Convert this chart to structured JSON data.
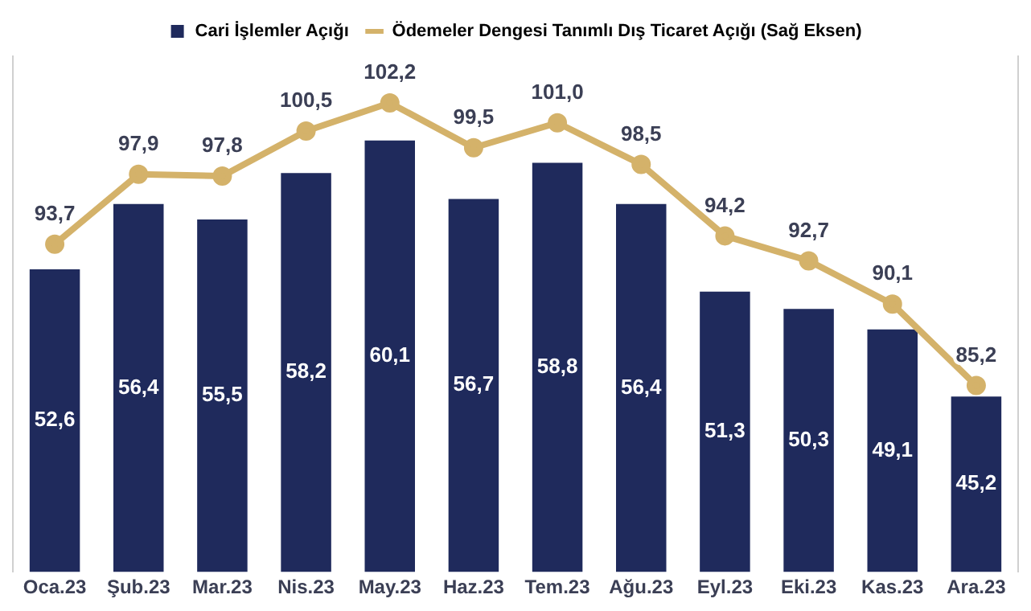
{
  "chart_data": {
    "type": "bar",
    "categories": [
      "Oca.23",
      "Şub.23",
      "Mar.23",
      "Nis.23",
      "May.23",
      "Haz.23",
      "Tem.23",
      "Ağu.23",
      "Eyl.23",
      "Eki.23",
      "Kas.23",
      "Ara.23"
    ],
    "series": [
      {
        "name": "Cari İşlemler Açığı",
        "color": "#1f2a5c",
        "values": [
          52.6,
          56.4,
          55.5,
          58.2,
          60.1,
          56.7,
          58.8,
          56.4,
          51.3,
          50.3,
          49.1,
          45.2
        ],
        "value_labels": [
          "52,6",
          "56,4",
          "55,5",
          "58,2",
          "60,1",
          "56,7",
          "58,8",
          "56,4",
          "51,3",
          "50,3",
          "49,1",
          "45,2"
        ]
      },
      {
        "name": "Ödemeler Dengesi Tanımlı Dış Ticaret Açığı (Sağ Eksen)",
        "type": "line",
        "axis": "y2",
        "color": "#d4b26a",
        "values": [
          93.7,
          97.9,
          97.8,
          100.5,
          102.2,
          99.5,
          101.0,
          98.5,
          94.2,
          92.7,
          90.1,
          85.2
        ],
        "value_labels": [
          "93,7",
          "97,9",
          "97,8",
          "100,5",
          "102,2",
          "99,5",
          "101,0",
          "98,5",
          "94,2",
          "92,7",
          "90,1",
          "85,2"
        ]
      }
    ],
    "ylim": [
      35,
      65
    ],
    "y2lim": [
      74,
      105
    ],
    "tick_labels": "x",
    "grid": false,
    "legend": "top",
    "marker": "circle"
  }
}
